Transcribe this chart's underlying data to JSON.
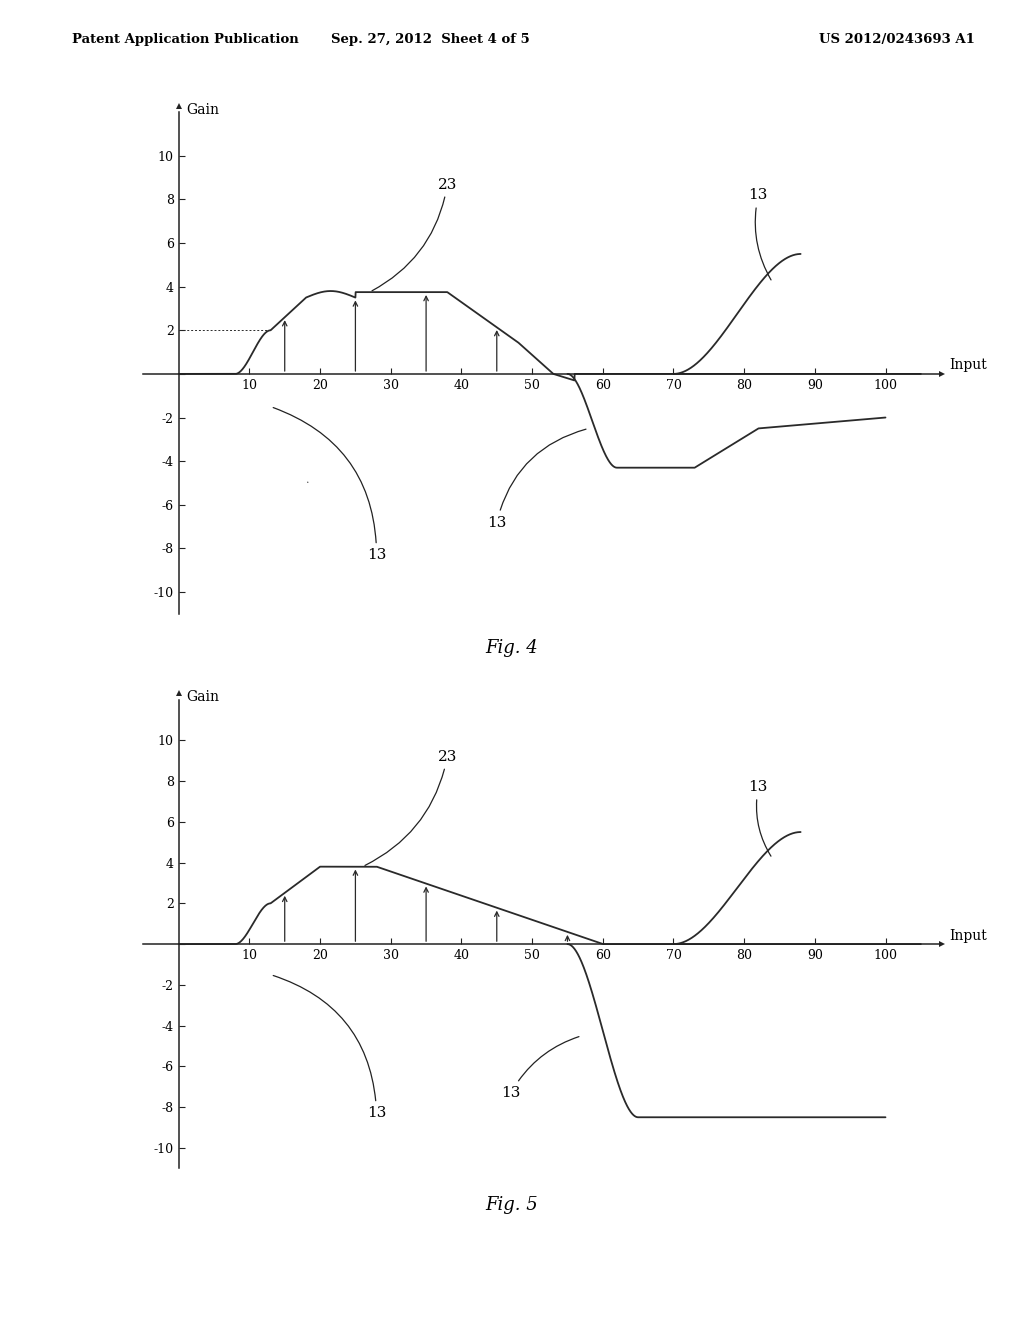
{
  "header_left": "Patent Application Publication",
  "header_center": "Sep. 27, 2012  Sheet 4 of 5",
  "header_right": "US 2012/0243693 A1",
  "fig4_title": "Fig. 4",
  "fig5_title": "Fig. 5",
  "ylabel": "Gain",
  "xlabel": "Input",
  "yticks": [
    -10,
    -8,
    -6,
    -4,
    -2,
    0,
    2,
    4,
    6,
    8,
    10
  ],
  "xticks": [
    10,
    20,
    30,
    40,
    50,
    60,
    70,
    80,
    90,
    100
  ],
  "xlim": [
    -5,
    108
  ],
  "ylim": [
    -11,
    12
  ],
  "bg_color": "#ffffff",
  "curve_color": "#2a2a2a"
}
